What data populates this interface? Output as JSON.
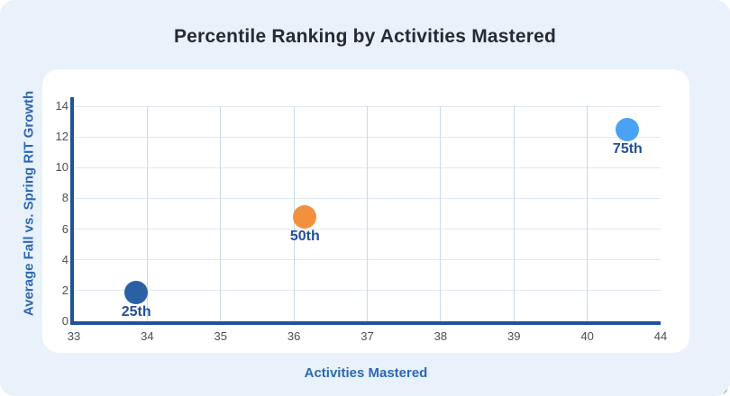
{
  "card": {
    "background_color": "#e9f1fb",
    "panel_color": "#ffffff"
  },
  "chart_data": {
    "type": "scatter",
    "title": "Percentile Ranking by Activities Mastered",
    "xlabel": "Activities Mastered",
    "ylabel": "Average Fall vs. Spring RIT Growth",
    "x_ticks": [
      33,
      34,
      35,
      36,
      37,
      38,
      39,
      40,
      44
    ],
    "y_ticks": [
      0,
      2,
      4,
      6,
      8,
      10,
      12,
      14
    ],
    "xlim": [
      33,
      44
    ],
    "ylim": [
      0,
      14
    ],
    "grid": true,
    "legend": "none",
    "points": [
      {
        "label": "25th",
        "x": 33.85,
        "y": 1.9,
        "color": "#2b60a5"
      },
      {
        "label": "50th",
        "x": 36.15,
        "y": 6.8,
        "color": "#f2913d"
      },
      {
        "label": "75th",
        "x": 42.2,
        "y": 12.5,
        "color": "#4aa2f5"
      }
    ],
    "colors": {
      "title_text": "#252b35",
      "axis_title_text": "#2d68b2",
      "tick_text": "#494f58",
      "axis_line": "#1f529b",
      "grid_horizontal": "#e0e8f3",
      "grid_vertical": "#c9d9ec",
      "point_label_text": "#234f9a"
    }
  }
}
